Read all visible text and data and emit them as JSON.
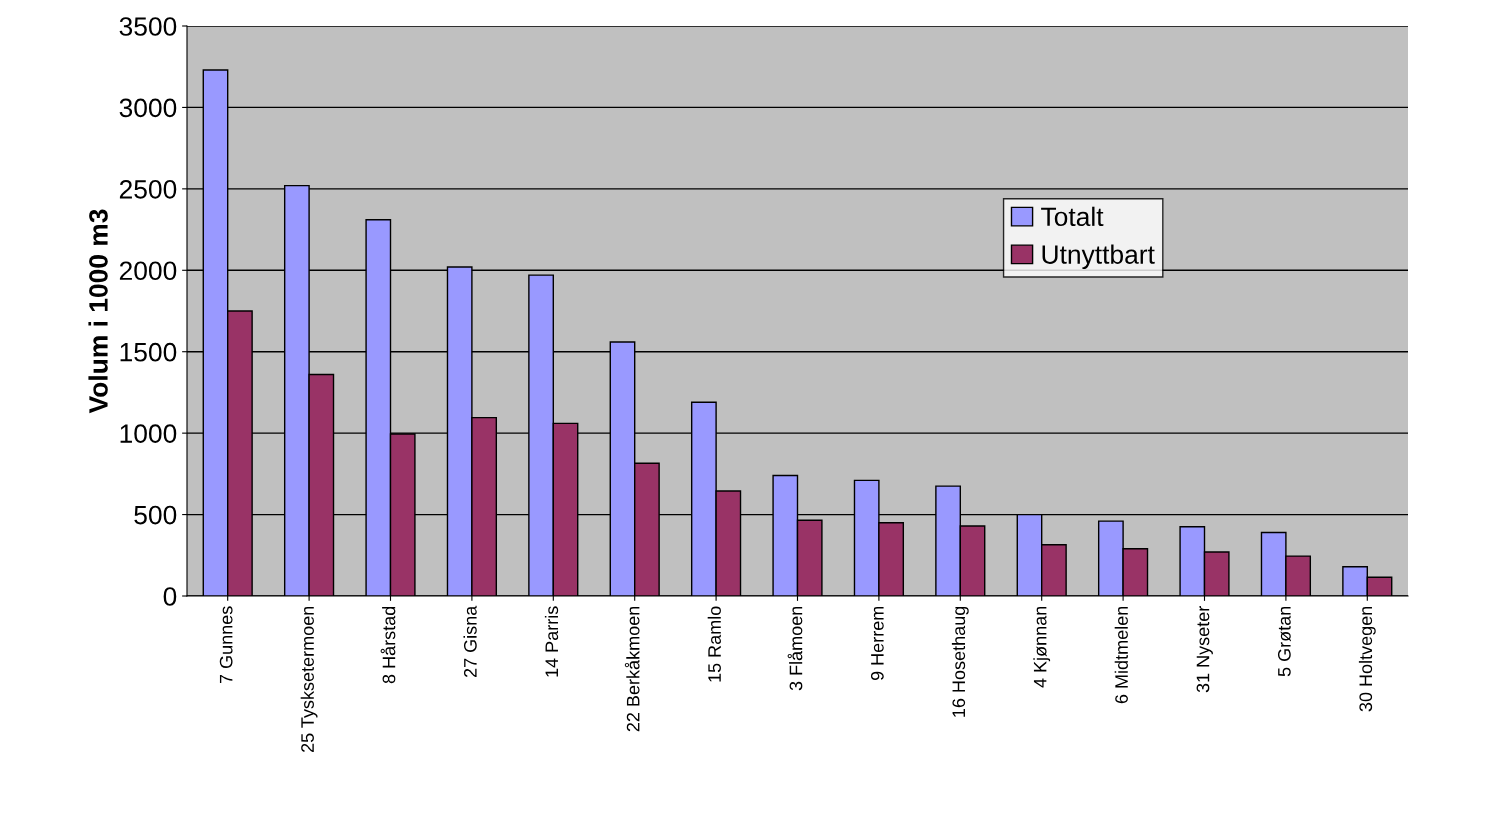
{
  "chart_data": {
    "type": "bar",
    "ylabel": "Volum i 1000 m3",
    "categories": [
      "7 Gunnes",
      "25 Tysksetermoen",
      "8 Hårstad",
      "27 Gisna",
      "14 Parris",
      "22 Berkåkmoen",
      "15 Ramlo",
      "3 Flåmoen",
      "9 Herrem",
      "16 Hosethaug",
      "4 Kjønnan",
      "6 Midtmelen",
      "31 Nyseter",
      "5 Grøtan",
      "30 Holtvegen"
    ],
    "series": [
      {
        "name": "Totalt",
        "color": "#9999ff",
        "values": [
          3230,
          2520,
          2310,
          2020,
          1970,
          1560,
          1190,
          740,
          710,
          675,
          500,
          460,
          425,
          390,
          180
        ]
      },
      {
        "name": "Utnyttbart",
        "color": "#993366",
        "values": [
          1750,
          1360,
          995,
          1095,
          1060,
          815,
          645,
          465,
          450,
          430,
          315,
          290,
          270,
          245,
          115
        ]
      }
    ],
    "ylim": [
      0,
      3500
    ],
    "yticks": [
      0,
      500,
      1000,
      1500,
      2000,
      2500,
      3000,
      3500
    ],
    "grid": "y",
    "legend": "top right"
  }
}
